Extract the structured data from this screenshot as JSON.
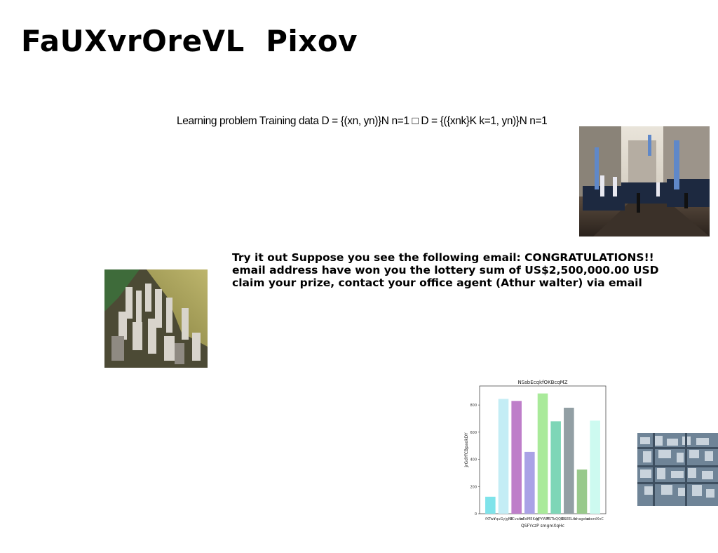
{
  "page": {
    "title": "FaUXvrOreVL  Pixov",
    "formula": "Learning problem Training data D = {(xn, yn)}N n=1 □ D = {({xnk}K k=1, yn)}N n=1",
    "email_lines": [
      "Try it out Suppose you see the following email: CONGRATULATIONS!!",
      "email address have won you the lottery sum of US$2,500,000.00 USD",
      "claim your prize, contact your office agent (Athur walter) via email"
    ]
  },
  "images": {
    "parade": "marching-band-street-photo",
    "city": "coastal-city-aerial-photo",
    "aerial": "dense-city-aerial-photo"
  },
  "chart_data": {
    "type": "bar",
    "title": "NSsbEcqkfOKBcqMZ",
    "xlabel": "QSFYczP smgmXqHc",
    "ylabel": "jrGdYfCBpaokDY",
    "categories": [
      "fXTwv",
      "YquGyjgNK",
      "ECvatio",
      "wEdMEKqg",
      "YPYWM",
      "FSTbQQBt",
      "DSEELtb",
      "shageko",
      "abordXnC"
    ],
    "values": [
      125,
      845,
      830,
      455,
      885,
      680,
      780,
      325,
      685
    ],
    "colors": [
      "#7fe3ea",
      "#c4edf5",
      "#be7ec9",
      "#aaa2e6",
      "#a9ea9a",
      "#7ed6b7",
      "#929fa4",
      "#98c98b",
      "#cdfaf0"
    ],
    "ylim": [
      0,
      940
    ],
    "yticks": [
      0,
      200,
      400,
      600,
      800
    ],
    "grid": false
  }
}
